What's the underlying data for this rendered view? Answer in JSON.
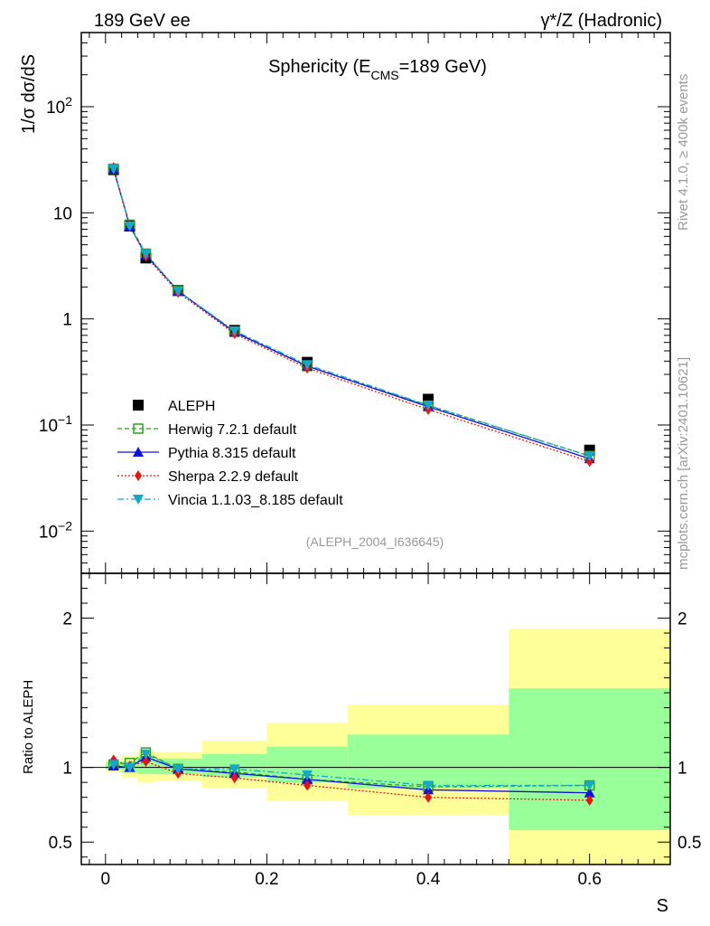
{
  "header": {
    "left": "189 GeV ee",
    "right": "γ*/Z (Hadronic)"
  },
  "side_labels": {
    "rivet": "Rivet 4.1.0, ≥ 400k events",
    "mcplots": "mcplots.cern.ch [arXiv:2401.10621]"
  },
  "chart_data": {
    "type": "line",
    "title": "Sphericity (E",
    "title_sub": "CMS",
    "title_rest": "=189 GeV)",
    "analysis_id": "(ALEPH_2004_I636645)",
    "xlabel": "S",
    "ylabel": "1/σ  dσ/dS",
    "ratio_ylabel": "Ratio to ALEPH",
    "xlim": [
      -0.03,
      0.7
    ],
    "ylim_log": [
      0.004,
      500
    ],
    "ratio_ylim": [
      0.35,
      2.3
    ],
    "x_ticks": [
      {
        "value": 0,
        "label": "0"
      },
      {
        "value": 0.2,
        "label": "0.2"
      },
      {
        "value": 0.4,
        "label": "0.4"
      },
      {
        "value": 0.6,
        "label": "0.6"
      }
    ],
    "y_ticks": [
      {
        "value": 0.01,
        "base": "10",
        "exp": "−2"
      },
      {
        "value": 0.1,
        "base": "10",
        "exp": "−1"
      },
      {
        "value": 1,
        "base": "1",
        "exp": ""
      },
      {
        "value": 10,
        "base": "10",
        "exp": ""
      },
      {
        "value": 100,
        "base": "10",
        "exp": "2"
      }
    ],
    "ratio_ticks": [
      {
        "value": 0.5,
        "label": "0.5"
      },
      {
        "value": 1,
        "label": "1"
      },
      {
        "value": 2,
        "label": "2"
      }
    ],
    "bins": [
      {
        "lo": 0.0,
        "hi": 0.02
      },
      {
        "lo": 0.02,
        "hi": 0.04
      },
      {
        "lo": 0.04,
        "hi": 0.06
      },
      {
        "lo": 0.06,
        "hi": 0.12
      },
      {
        "lo": 0.12,
        "hi": 0.2
      },
      {
        "lo": 0.2,
        "hi": 0.3
      },
      {
        "lo": 0.3,
        "hi": 0.5
      },
      {
        "lo": 0.5,
        "hi": 0.7
      }
    ],
    "x": [
      0.01,
      0.03,
      0.05,
      0.09,
      0.16,
      0.25,
      0.4,
      0.6
    ],
    "data": {
      "name": "ALEPH",
      "values": [
        25.5,
        7.5,
        3.75,
        1.85,
        0.78,
        0.39,
        0.175,
        0.058
      ],
      "band_inner": [
        [
          0.985,
          1.035
        ],
        [
          0.965,
          1.04
        ],
        [
          0.955,
          1.075
        ],
        [
          0.955,
          1.06
        ],
        [
          0.935,
          1.09
        ],
        [
          0.9,
          1.14
        ],
        [
          0.86,
          1.22
        ],
        [
          0.58,
          1.53
        ]
      ],
      "band_outer": [
        [
          0.97,
          1.05
        ],
        [
          0.93,
          1.08
        ],
        [
          0.9,
          1.12
        ],
        [
          0.91,
          1.1
        ],
        [
          0.86,
          1.18
        ],
        [
          0.775,
          1.3
        ],
        [
          0.68,
          1.42
        ],
        [
          0.32,
          1.93
        ]
      ]
    },
    "series": [
      {
        "name": "Herwig 7.2.1 default",
        "color": "#2e9e22",
        "dash": "5,3",
        "marker": "square-open",
        "ratio": [
          1.02,
          1.03,
          1.1,
          0.99,
          0.97,
          0.92,
          0.87,
          0.88
        ]
      },
      {
        "name": "Pythia 8.315 default",
        "color": "#1010e0",
        "dash": "",
        "marker": "triangle-up",
        "ratio": [
          1.01,
          1.0,
          1.07,
          0.99,
          0.96,
          0.92,
          0.85,
          0.83
        ]
      },
      {
        "name": "Sherpa 2.2.9 default",
        "color": "#ee1111",
        "dash": "2,2",
        "marker": "diamond",
        "ratio": [
          1.05,
          1.01,
          1.04,
          0.96,
          0.93,
          0.88,
          0.8,
          0.78
        ]
      },
      {
        "name": "Vincia 1.1.03_8.185 default",
        "color": "#16a8c8",
        "dash": "7,3,2,3",
        "marker": "triangle-down",
        "ratio": [
          1.02,
          1.0,
          1.09,
          0.99,
          0.99,
          0.95,
          0.88,
          0.88
        ]
      }
    ],
    "colors": {
      "band_outer": "#ffff99",
      "band_inner": "#99ff99",
      "data_marker": "#000000"
    }
  }
}
